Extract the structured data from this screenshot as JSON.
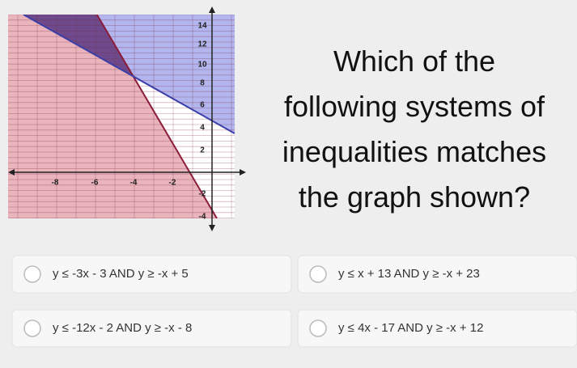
{
  "graph": {
    "x_tick_labels": [
      "-8",
      "-6",
      "-4",
      "-2"
    ],
    "y_tick_labels": [
      "14",
      "12",
      "10",
      "8",
      "6",
      "4",
      "2",
      "-2",
      "-4"
    ]
  },
  "question": [
    "Which of the",
    "following systems of",
    "inequalities matches",
    "the graph shown?"
  ],
  "options": [
    "y ≤ -3x - 3 AND y ≥ -x + 5",
    "y ≤ x + 13 AND y ≥ -x + 23",
    "y ≤ -12x - 2 AND y ≥ -x - 8",
    "y ≤ 4x - 17 AND y ≥ -x + 12"
  ]
}
